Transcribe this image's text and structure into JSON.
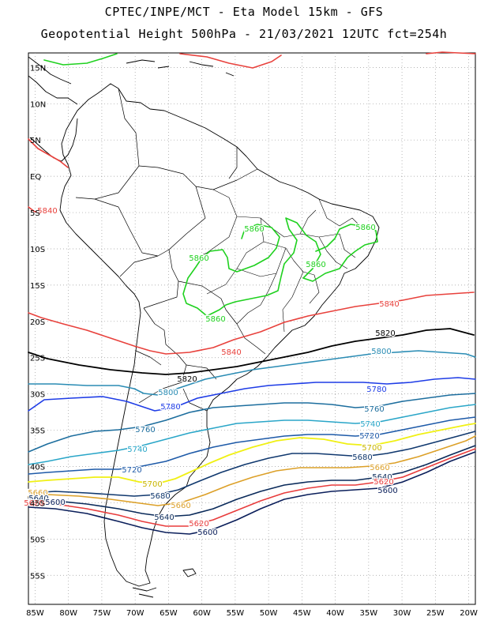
{
  "header": {
    "line1": "CPTEC/INPE/MCT -  Eta Model 15km - GFS",
    "line2": "Geopotential Height 500hPa - 21/03/2021 12UTC fct=254h"
  },
  "map": {
    "lon_range": [
      -86,
      -19
    ],
    "lat_range": [
      17,
      -59
    ],
    "lat_ticks": [
      "15N",
      "10N",
      "5N",
      "EQ",
      "5S",
      "10S",
      "15S",
      "20S",
      "25S",
      "30S",
      "35S",
      "40S",
      "45S",
      "50S",
      "55S"
    ],
    "lon_ticks": [
      "85W",
      "80W",
      "75W",
      "70W",
      "65W",
      "60W",
      "55W",
      "50W",
      "45W",
      "40W",
      "35W",
      "30W",
      "25W",
      "20W"
    ]
  },
  "contours": [
    {
      "value": "5860",
      "color": "#1fd11f"
    },
    {
      "value": "5840",
      "color": "#e8413c"
    },
    {
      "value": "5820",
      "color": "#000000"
    },
    {
      "value": "5800",
      "color": "#2a8cb4"
    },
    {
      "value": "5780",
      "color": "#1e3ce6"
    },
    {
      "value": "5760",
      "color": "#1d6e9e"
    },
    {
      "value": "5740",
      "color": "#2aa6c8"
    },
    {
      "value": "5720",
      "color": "#1e5aa8"
    },
    {
      "value": "5700",
      "color": "#f0f014"
    },
    {
      "value": "5680",
      "color": "#10386e"
    },
    {
      "value": "5660",
      "color": "#dca028"
    },
    {
      "value": "5640",
      "color": "#0a2a5a"
    },
    {
      "value": "5620",
      "color": "#e83c3c"
    },
    {
      "value": "5600",
      "color": "#0a1e5a"
    }
  ],
  "contour_labels": [
    {
      "text": "5860",
      "color": "#1fd11f"
    },
    {
      "text": "5860",
      "color": "#1fd11f"
    },
    {
      "text": "5860",
      "color": "#1fd11f"
    },
    {
      "text": "5860",
      "color": "#1fd11f"
    },
    {
      "text": "5860",
      "color": "#1fd11f"
    },
    {
      "text": "5840",
      "color": "#e8413c"
    },
    {
      "text": "5840",
      "color": "#e8413c"
    },
    {
      "text": "5840",
      "color": "#e8413c"
    },
    {
      "text": "5820",
      "color": "#000000"
    },
    {
      "text": "5820",
      "color": "#000000"
    },
    {
      "text": "5800",
      "color": "#2a8cb4"
    },
    {
      "text": "5800",
      "color": "#2a8cb4"
    },
    {
      "text": "5780",
      "color": "#1e3ce6"
    },
    {
      "text": "5780",
      "color": "#1e3ce6"
    },
    {
      "text": "5760",
      "color": "#1d6e9e"
    },
    {
      "text": "5760",
      "color": "#1d6e9e"
    },
    {
      "text": "5740",
      "color": "#2aa6c8"
    },
    {
      "text": "5740",
      "color": "#2aa6c8"
    },
    {
      "text": "5720",
      "color": "#1e5aa8"
    },
    {
      "text": "5720",
      "color": "#1e5aa8"
    },
    {
      "text": "5700",
      "color": "#c8b400"
    },
    {
      "text": "5700",
      "color": "#c8b400"
    },
    {
      "text": "5680",
      "color": "#10386e"
    },
    {
      "text": "5680",
      "color": "#10386e"
    },
    {
      "text": "5660",
      "color": "#dca028"
    },
    {
      "text": "5660",
      "color": "#dca028"
    },
    {
      "text": "5660",
      "color": "#dca028"
    },
    {
      "text": "5640",
      "color": "#0a2a5a"
    },
    {
      "text": "5640",
      "color": "#0a2a5a"
    },
    {
      "text": "5640",
      "color": "#0a2a5a"
    },
    {
      "text": "5620",
      "color": "#e83c3c"
    },
    {
      "text": "5620",
      "color": "#e83c3c"
    },
    {
      "text": "5620",
      "color": "#e83c3c"
    },
    {
      "text": "5600",
      "color": "#0a1e5a"
    },
    {
      "text": "5600",
      "color": "#0a1e5a"
    },
    {
      "text": "5600",
      "color": "#0a1e5a"
    }
  ]
}
